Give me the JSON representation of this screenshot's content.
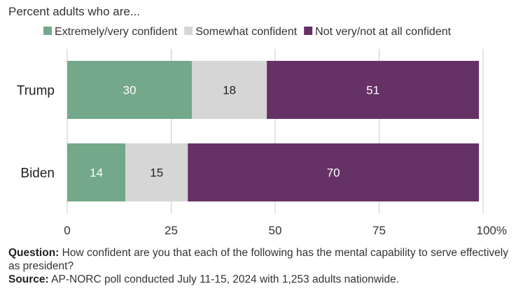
{
  "subtitle": "Percent adults who are...",
  "chart_data": {
    "type": "bar",
    "orientation": "horizontal",
    "stacked": true,
    "categories": [
      "Trump",
      "Biden"
    ],
    "series": [
      {
        "name": "Extremely/very confident",
        "values": [
          30,
          14
        ],
        "color": "#73a88a",
        "label_color": "#ffffff"
      },
      {
        "name": "Somewhat confident",
        "values": [
          18,
          15
        ],
        "color": "#d6d6d6",
        "label_color": "#222222"
      },
      {
        "name": "Not very/not at all confident",
        "values": [
          51,
          70
        ],
        "color": "#663266",
        "label_color": "#ffffff"
      }
    ],
    "x_ticks": [
      "0",
      "25",
      "50",
      "75",
      "100%"
    ],
    "xlim": [
      0,
      100
    ],
    "grid": true,
    "legend_position": "top"
  },
  "notes": {
    "question_label": "Question:",
    "question_text": "How confident are you that each of the following has the mental capability to serve effectively as president?",
    "source_label": "Source:",
    "source_text": "AP-NORC poll conducted July 11-15, 2024 with 1,253 adults nationwide."
  }
}
